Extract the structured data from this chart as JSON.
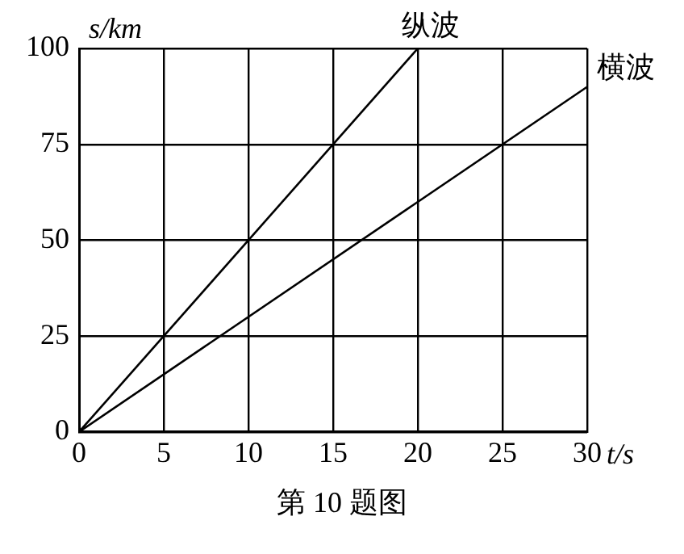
{
  "chart_data": {
    "type": "line",
    "xlabel": "t/s",
    "ylabel": "s/km",
    "annotations": [
      "第 10 题图"
    ],
    "series": [
      {
        "name": "纵波",
        "color": "#000000",
        "x": [
          0,
          20
        ],
        "values": [
          0,
          100
        ]
      },
      {
        "name": "横波",
        "color": "#000000",
        "x": [
          0,
          30
        ],
        "values": [
          0,
          90
        ]
      }
    ],
    "xlim": [
      0,
      30
    ],
    "xticks": [
      0,
      5,
      10,
      15,
      20,
      25,
      30
    ],
    "ylim": [
      0,
      100
    ],
    "yticks": [
      0,
      25,
      50,
      75,
      100
    ],
    "grid": true,
    "legend": false,
    "marker": "none",
    "line_style": "solid"
  }
}
